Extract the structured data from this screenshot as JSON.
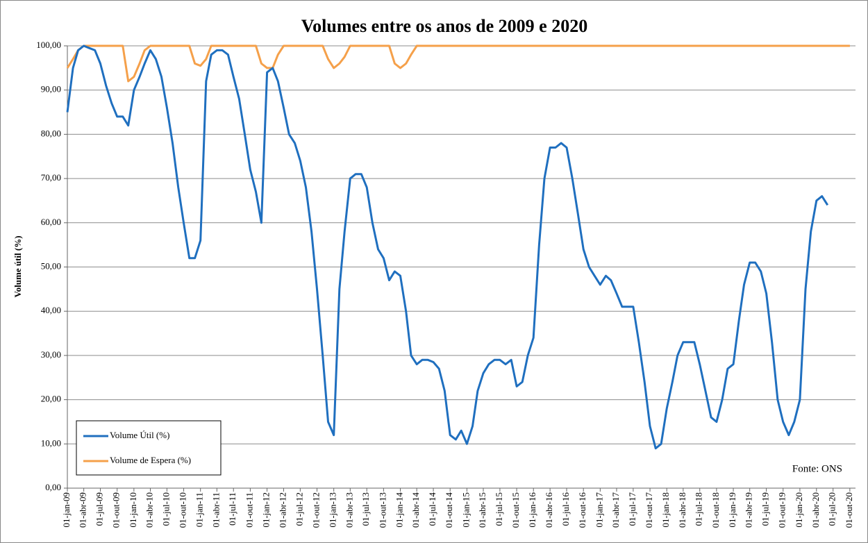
{
  "chart_data": {
    "type": "line",
    "title": "Volumes entre os anos de 2009 e 2020",
    "y_label": "Volume útil (%)",
    "annotation": "Fonte: ONS",
    "legend": "bottom-left",
    "grid": true,
    "ylim": [
      0,
      100
    ],
    "yticks": [
      {
        "value": 0,
        "label": "0,00"
      },
      {
        "value": 10,
        "label": "10,00"
      },
      {
        "value": 20,
        "label": "20,00"
      },
      {
        "value": 30,
        "label": "30,00"
      },
      {
        "value": 40,
        "label": "40,00"
      },
      {
        "value": 50,
        "label": "50,00"
      },
      {
        "value": 60,
        "label": "60,00"
      },
      {
        "value": 70,
        "label": "70,00"
      },
      {
        "value": 80,
        "label": "80,00"
      },
      {
        "value": 90,
        "label": "90,00"
      },
      {
        "value": 100,
        "label": "100,00"
      }
    ],
    "xlim": [
      "2009-01-01",
      "2020-11-01"
    ],
    "xticks": [
      {
        "value": "2009-01-01",
        "label": "01-jan-09"
      },
      {
        "value": "2009-04-01",
        "label": "01-abr-09"
      },
      {
        "value": "2009-07-01",
        "label": "01-jul-09"
      },
      {
        "value": "2009-10-01",
        "label": "01-out-09"
      },
      {
        "value": "2010-01-01",
        "label": "01-jan-10"
      },
      {
        "value": "2010-04-01",
        "label": "01-abr-10"
      },
      {
        "value": "2010-07-01",
        "label": "01-jul-10"
      },
      {
        "value": "2010-10-01",
        "label": "01-out-10"
      },
      {
        "value": "2011-01-01",
        "label": "01-jan-11"
      },
      {
        "value": "2011-04-01",
        "label": "01-abr-11"
      },
      {
        "value": "2011-07-01",
        "label": "01-jul-11"
      },
      {
        "value": "2011-10-01",
        "label": "01-out-11"
      },
      {
        "value": "2012-01-01",
        "label": "01-jan-12"
      },
      {
        "value": "2012-04-01",
        "label": "01-abr-12"
      },
      {
        "value": "2012-07-01",
        "label": "01-jul-12"
      },
      {
        "value": "2012-10-01",
        "label": "01-out-12"
      },
      {
        "value": "2013-01-01",
        "label": "01-jan-13"
      },
      {
        "value": "2013-04-01",
        "label": "01-abr-13"
      },
      {
        "value": "2013-07-01",
        "label": "01-jul-13"
      },
      {
        "value": "2013-10-01",
        "label": "01-out-13"
      },
      {
        "value": "2014-01-01",
        "label": "01-jan-14"
      },
      {
        "value": "2014-04-01",
        "label": "01-abr-14"
      },
      {
        "value": "2014-07-01",
        "label": "01-jul-14"
      },
      {
        "value": "2014-10-01",
        "label": "01-out-14"
      },
      {
        "value": "2015-01-01",
        "label": "01-jan-15"
      },
      {
        "value": "2015-04-01",
        "label": "01-abr-15"
      },
      {
        "value": "2015-07-01",
        "label": "01-jul-15"
      },
      {
        "value": "2015-10-01",
        "label": "01-out-15"
      },
      {
        "value": "2016-01-01",
        "label": "01-jan-16"
      },
      {
        "value": "2016-04-01",
        "label": "01-abr-16"
      },
      {
        "value": "2016-07-01",
        "label": "01-jul-16"
      },
      {
        "value": "2016-10-01",
        "label": "01-out-16"
      },
      {
        "value": "2017-01-01",
        "label": "01-jan-17"
      },
      {
        "value": "2017-04-01",
        "label": "01-abr-17"
      },
      {
        "value": "2017-07-01",
        "label": "01-jul-17"
      },
      {
        "value": "2017-10-01",
        "label": "01-out-17"
      },
      {
        "value": "2018-01-01",
        "label": "01-jan-18"
      },
      {
        "value": "2018-04-01",
        "label": "01-abr-18"
      },
      {
        "value": "2018-07-01",
        "label": "01-jul-18"
      },
      {
        "value": "2018-10-01",
        "label": "01-out-18"
      },
      {
        "value": "2019-01-01",
        "label": "01-jan-19"
      },
      {
        "value": "2019-04-01",
        "label": "01-abr-19"
      },
      {
        "value": "2019-07-01",
        "label": "01-jul-19"
      },
      {
        "value": "2019-10-01",
        "label": "01-out-19"
      },
      {
        "value": "2020-01-01",
        "label": "01-jan-20"
      },
      {
        "value": "2020-04-01",
        "label": "01-abr-20"
      },
      {
        "value": "2020-07-01",
        "label": "01-jul-20"
      },
      {
        "value": "2020-10-01",
        "label": "01-out-20"
      }
    ],
    "x": [
      "2009-01-01",
      "2009-02-01",
      "2009-03-01",
      "2009-04-01",
      "2009-05-01",
      "2009-06-01",
      "2009-07-01",
      "2009-08-01",
      "2009-09-01",
      "2009-10-01",
      "2009-11-01",
      "2009-12-01",
      "2010-01-01",
      "2010-02-01",
      "2010-03-01",
      "2010-04-01",
      "2010-05-01",
      "2010-06-01",
      "2010-07-01",
      "2010-08-01",
      "2010-09-01",
      "2010-10-01",
      "2010-11-01",
      "2010-12-01",
      "2011-01-01",
      "2011-02-01",
      "2011-03-01",
      "2011-04-01",
      "2011-05-01",
      "2011-06-01",
      "2011-07-01",
      "2011-08-01",
      "2011-09-01",
      "2011-10-01",
      "2011-11-01",
      "2011-12-01",
      "2012-01-01",
      "2012-02-01",
      "2012-03-01",
      "2012-04-01",
      "2012-05-01",
      "2012-06-01",
      "2012-07-01",
      "2012-08-01",
      "2012-09-01",
      "2012-10-01",
      "2012-11-01",
      "2012-12-01",
      "2013-01-01",
      "2013-02-01",
      "2013-03-01",
      "2013-04-01",
      "2013-05-01",
      "2013-06-01",
      "2013-07-01",
      "2013-08-01",
      "2013-09-01",
      "2013-10-01",
      "2013-11-01",
      "2013-12-01",
      "2014-01-01",
      "2014-02-01",
      "2014-03-01",
      "2014-04-01",
      "2014-05-01",
      "2014-06-01",
      "2014-07-01",
      "2014-08-01",
      "2014-09-01",
      "2014-10-01",
      "2014-11-01",
      "2014-12-01",
      "2015-01-01",
      "2015-02-01",
      "2015-03-01",
      "2015-04-01",
      "2015-05-01",
      "2015-06-01",
      "2015-07-01",
      "2015-08-01",
      "2015-09-01",
      "2015-10-01",
      "2015-11-01",
      "2015-12-01",
      "2016-01-01",
      "2016-02-01",
      "2016-03-01",
      "2016-04-01",
      "2016-05-01",
      "2016-06-01",
      "2016-07-01",
      "2016-08-01",
      "2016-09-01",
      "2016-10-01",
      "2016-11-01",
      "2016-12-01",
      "2017-01-01",
      "2017-02-01",
      "2017-03-01",
      "2017-04-01",
      "2017-05-01",
      "2017-06-01",
      "2017-07-01",
      "2017-08-01",
      "2017-09-01",
      "2017-10-01",
      "2017-11-01",
      "2017-12-01",
      "2018-01-01",
      "2018-02-01",
      "2018-03-01",
      "2018-04-01",
      "2018-05-01",
      "2018-06-01",
      "2018-07-01",
      "2018-08-01",
      "2018-09-01",
      "2018-10-01",
      "2018-11-01",
      "2018-12-01",
      "2019-01-01",
      "2019-02-01",
      "2019-03-01",
      "2019-04-01",
      "2019-05-01",
      "2019-06-01",
      "2019-07-01",
      "2019-08-01",
      "2019-09-01",
      "2019-10-01",
      "2019-11-01",
      "2019-12-01",
      "2020-01-01",
      "2020-02-01",
      "2020-03-01",
      "2020-04-01",
      "2020-05-01",
      "2020-06-01",
      "2020-07-01",
      "2020-08-01",
      "2020-09-01",
      "2020-10-01"
    ],
    "series": [
      {
        "name": "Volume Útil (%)",
        "color": "#1f6fbf",
        "values": [
          85,
          95,
          99,
          100,
          99.5,
          99,
          96,
          91,
          87,
          84,
          84,
          82,
          90,
          93,
          96,
          99,
          97,
          93,
          86,
          78,
          68,
          60,
          52,
          52,
          56,
          92,
          98,
          99,
          99,
          98,
          93,
          88,
          80,
          72,
          67,
          60,
          94,
          95,
          92,
          86,
          80,
          78,
          74,
          68,
          58,
          45,
          30,
          15,
          12,
          45,
          58,
          70,
          71,
          71,
          68,
          60,
          54,
          52,
          47,
          49,
          48,
          40,
          30,
          28,
          29,
          29,
          28.5,
          27,
          22,
          12,
          11,
          13,
          10,
          14,
          22,
          26,
          28,
          29,
          29,
          28,
          29,
          23,
          24,
          30,
          34,
          55,
          70,
          77,
          77,
          78,
          77,
          70,
          62,
          54,
          50,
          48,
          46,
          48,
          47,
          44,
          41,
          41,
          41,
          33,
          24,
          14,
          9,
          10,
          18,
          24,
          30,
          33,
          33,
          33,
          28,
          22,
          16,
          15,
          20,
          27,
          28,
          38,
          46,
          51,
          51,
          49,
          44,
          33,
          20,
          15,
          12,
          15,
          20,
          45,
          58,
          65,
          66,
          64,
          null,
          null,
          null,
          null
        ]
      },
      {
        "name": "Volume de Espera (%)",
        "color": "#f5a04a",
        "values": [
          95,
          97,
          99,
          100,
          100,
          100,
          100,
          100,
          100,
          100,
          100,
          92,
          93,
          96,
          99,
          100,
          100,
          100,
          100,
          100,
          100,
          100,
          100,
          96,
          95.5,
          97,
          100,
          100,
          100,
          100,
          100,
          100,
          100,
          100,
          100,
          96,
          95,
          95,
          98,
          100,
          100,
          100,
          100,
          100,
          100,
          100,
          100,
          97,
          95,
          96,
          97.5,
          100,
          100,
          100,
          100,
          100,
          100,
          100,
          100,
          96,
          95,
          96,
          98,
          100,
          100,
          100,
          100,
          100,
          100,
          100,
          100,
          100,
          100,
          100,
          100,
          100,
          100,
          100,
          100,
          100,
          100,
          100,
          100,
          100,
          100,
          100,
          100,
          100,
          100,
          100,
          100,
          100,
          100,
          100,
          100,
          100,
          100,
          100,
          100,
          100,
          100,
          100,
          100,
          100,
          100,
          100,
          100,
          100,
          100,
          100,
          100,
          100,
          100,
          100,
          100,
          100,
          100,
          100,
          100,
          100,
          100,
          100,
          100,
          100,
          100,
          100,
          100,
          100,
          100,
          100,
          100,
          100,
          100,
          100,
          100,
          100,
          100,
          100,
          100,
          100,
          100,
          100
        ]
      }
    ]
  }
}
